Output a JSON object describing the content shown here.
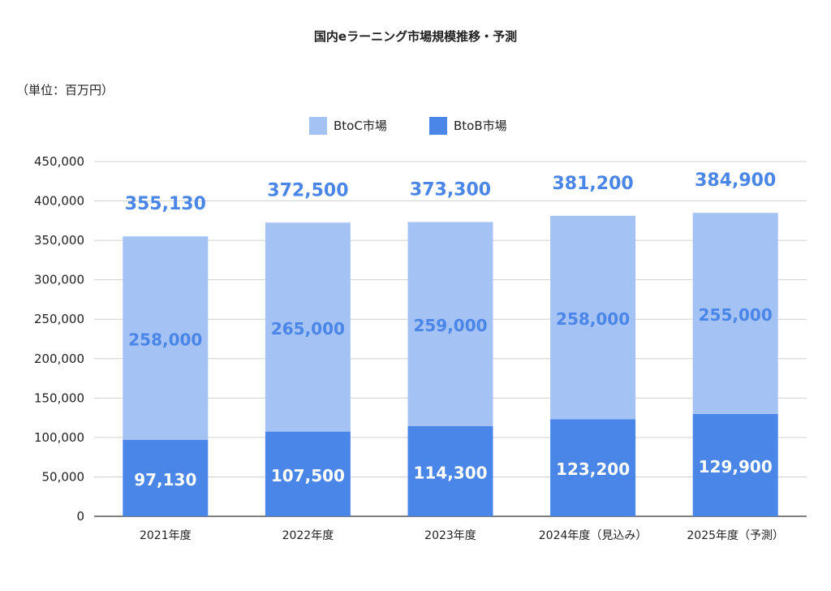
{
  "chart_data": {
    "type": "bar",
    "stacked": true,
    "title": "国内eラーニング市場規模推移・予測",
    "unit_note": "（単位：百万円）",
    "categories": [
      "2021年度",
      "2022年度",
      "2023年度",
      "2024年度（見込み）",
      "2025年度（予測）"
    ],
    "series": [
      {
        "name": "BtoB市場",
        "values": [
          97130,
          107500,
          114300,
          123200,
          129900
        ],
        "color": "#4a86e8",
        "labels": [
          "97,130",
          "107,500",
          "114,300",
          "123,200",
          "129,900"
        ]
      },
      {
        "name": "BtoC市場",
        "values": [
          258000,
          265000,
          259000,
          258000,
          255000
        ],
        "color": "#a4c2f4",
        "labels": [
          "258,000",
          "265,000",
          "259,000",
          "258,000",
          "255,000"
        ]
      }
    ],
    "totals": [
      "355,130",
      "372,500",
      "373,300",
      "381,200",
      "384,900"
    ],
    "legend_order": [
      "BtoC市場",
      "BtoB市場"
    ],
    "legend_position": "top",
    "ylim": [
      0,
      450000
    ],
    "yticks": [
      "0",
      "50,000",
      "100,000",
      "150,000",
      "200,000",
      "250,000",
      "300,000",
      "350,000",
      "400,000",
      "450,000"
    ],
    "ytick_values": [
      0,
      50000,
      100000,
      150000,
      200000,
      250000,
      300000,
      350000,
      400000,
      450000
    ],
    "grid": true,
    "label_colors": {
      "inner_btob": "#ffffff",
      "inner_btoc": "#4a86e8",
      "total": "#4a86e8"
    }
  }
}
